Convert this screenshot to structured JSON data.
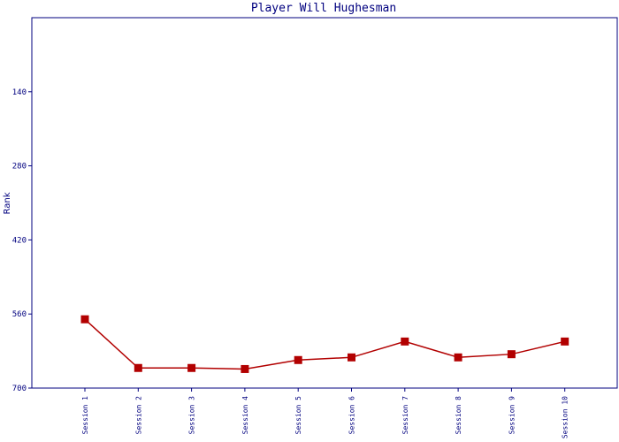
{
  "chart_data": {
    "type": "line",
    "title": "Player Will Hughesman",
    "xlabel": "",
    "ylabel": "Rank",
    "y_inverted": true,
    "ylim": [
      700,
      0
    ],
    "y_ticks": [
      140,
      280,
      420,
      560,
      700
    ],
    "categories": [
      "Session 1",
      "Session 2",
      "Session 3",
      "Session 4",
      "Session 5",
      "Session 6",
      "Session 7",
      "Session 8",
      "Session 9",
      "Session 10"
    ],
    "series": [
      {
        "values": [
          570,
          662,
          662,
          664,
          647,
          642,
          612,
          642,
          636,
          612
        ]
      }
    ],
    "grid": false,
    "colors": {
      "line": "#b20000",
      "marker": "#b20000",
      "axis": "#00007f",
      "text": "#00007f"
    }
  }
}
